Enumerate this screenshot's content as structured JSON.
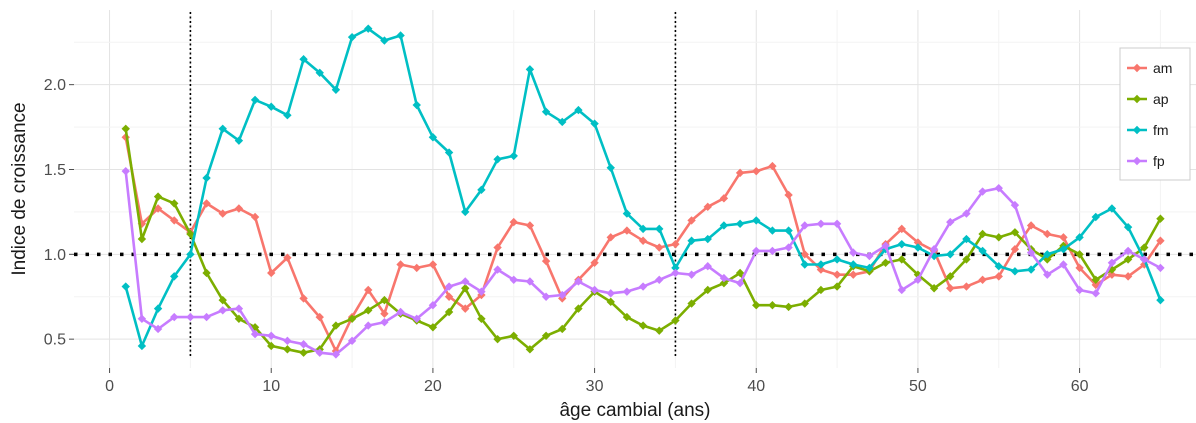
{
  "chart_data": {
    "type": "line",
    "title": "",
    "xlabel": "âge cambial (ans)",
    "ylabel": "Indice de croissance",
    "xlim": [
      -2.2,
      67.2
    ],
    "ylim": [
      0.33,
      2.44
    ],
    "xticks": [
      0,
      10,
      20,
      30,
      40,
      50,
      60
    ],
    "xtick_labels": [
      "0",
      "10",
      "20",
      "30",
      "40",
      "50",
      "60"
    ],
    "yticks": [
      0.5,
      1.0,
      1.5,
      2.0
    ],
    "ytick_labels": [
      "0.5",
      "1.0",
      "1.5",
      "2.0"
    ],
    "grid": true,
    "legend_position": "right",
    "reference_line": {
      "y": 1.0,
      "style": "dotted"
    },
    "vertical_lines": [
      5,
      35
    ],
    "x": [
      1,
      2,
      3,
      4,
      5,
      6,
      7,
      8,
      9,
      10,
      11,
      12,
      13,
      14,
      15,
      16,
      17,
      18,
      19,
      20,
      21,
      22,
      23,
      24,
      25,
      26,
      27,
      28,
      29,
      30,
      31,
      32,
      33,
      34,
      35,
      36,
      37,
      38,
      39,
      40,
      41,
      42,
      43,
      44,
      45,
      46,
      47,
      48,
      49,
      50,
      51,
      52,
      53,
      54,
      55,
      56,
      57,
      58,
      59,
      60,
      61,
      62,
      63,
      64,
      65
    ],
    "series": [
      {
        "name": "am",
        "color": "#F8766D",
        "values": [
          1.69,
          1.18,
          1.27,
          1.2,
          1.13,
          1.3,
          1.24,
          1.27,
          1.22,
          0.89,
          0.98,
          0.74,
          0.63,
          0.43,
          0.63,
          0.79,
          0.65,
          0.94,
          0.92,
          0.94,
          0.75,
          0.68,
          0.76,
          1.04,
          1.19,
          1.17,
          0.96,
          0.74,
          0.85,
          0.95,
          1.1,
          1.14,
          1.08,
          1.04,
          1.06,
          1.2,
          1.28,
          1.33,
          1.48,
          1.49,
          1.52,
          1.35,
          1.0,
          0.91,
          0.88,
          0.88,
          0.9,
          1.06,
          1.15,
          1.07,
          1.02,
          0.8,
          0.81,
          0.85,
          0.87,
          1.03,
          1.17,
          1.12,
          1.1,
          0.92,
          0.82,
          0.88,
          0.87,
          0.94,
          1.08
        ]
      },
      {
        "name": "ap",
        "color": "#7CAE00",
        "values": [
          1.74,
          1.09,
          1.34,
          1.3,
          1.12,
          0.89,
          0.73,
          0.62,
          0.57,
          0.46,
          0.44,
          0.42,
          0.44,
          0.58,
          0.62,
          0.67,
          0.73,
          0.65,
          0.61,
          0.57,
          0.66,
          0.8,
          0.62,
          0.5,
          0.52,
          0.44,
          0.52,
          0.56,
          0.68,
          0.78,
          0.72,
          0.63,
          0.58,
          0.55,
          0.61,
          0.71,
          0.79,
          0.83,
          0.89,
          0.7,
          0.7,
          0.69,
          0.71,
          0.79,
          0.81,
          0.93,
          0.9,
          0.95,
          0.97,
          0.88,
          0.8,
          0.87,
          0.97,
          1.12,
          1.1,
          1.13,
          1.03,
          0.97,
          1.05,
          1.0,
          0.85,
          0.91,
          0.97,
          1.04,
          1.21
        ]
      },
      {
        "name": "fm",
        "color": "#00BFC4",
        "values": [
          0.81,
          0.46,
          0.68,
          0.87,
          1.0,
          1.45,
          1.74,
          1.67,
          1.91,
          1.87,
          1.82,
          2.15,
          2.07,
          1.97,
          2.28,
          2.33,
          2.26,
          2.29,
          1.88,
          1.69,
          1.6,
          1.25,
          1.38,
          1.56,
          1.58,
          2.09,
          1.84,
          1.78,
          1.85,
          1.77,
          1.51,
          1.24,
          1.15,
          1.15,
          0.92,
          1.08,
          1.09,
          1.17,
          1.18,
          1.2,
          1.14,
          1.14,
          0.94,
          0.94,
          0.97,
          0.94,
          0.92,
          1.03,
          1.06,
          1.04,
          0.99,
          1.0,
          1.09,
          1.02,
          0.93,
          0.9,
          0.91,
          1.0,
          1.03,
          1.1,
          1.22,
          1.27,
          1.16,
          0.97,
          0.73
        ]
      },
      {
        "name": "fp",
        "color": "#C77CFF",
        "values": [
          1.49,
          0.62,
          0.56,
          0.63,
          0.63,
          0.63,
          0.67,
          0.68,
          0.53,
          0.52,
          0.49,
          0.47,
          0.42,
          0.41,
          0.49,
          0.58,
          0.6,
          0.66,
          0.62,
          0.7,
          0.81,
          0.84,
          0.78,
          0.91,
          0.85,
          0.84,
          0.75,
          0.76,
          0.84,
          0.79,
          0.77,
          0.78,
          0.81,
          0.85,
          0.89,
          0.88,
          0.93,
          0.86,
          0.83,
          1.02,
          1.02,
          1.04,
          1.17,
          1.18,
          1.18,
          1.01,
          0.99,
          1.05,
          0.79,
          0.85,
          1.03,
          1.19,
          1.24,
          1.37,
          1.39,
          1.29,
          1.01,
          0.88,
          0.94,
          0.79,
          0.77,
          0.95,
          1.02,
          0.97,
          0.92
        ]
      }
    ]
  }
}
